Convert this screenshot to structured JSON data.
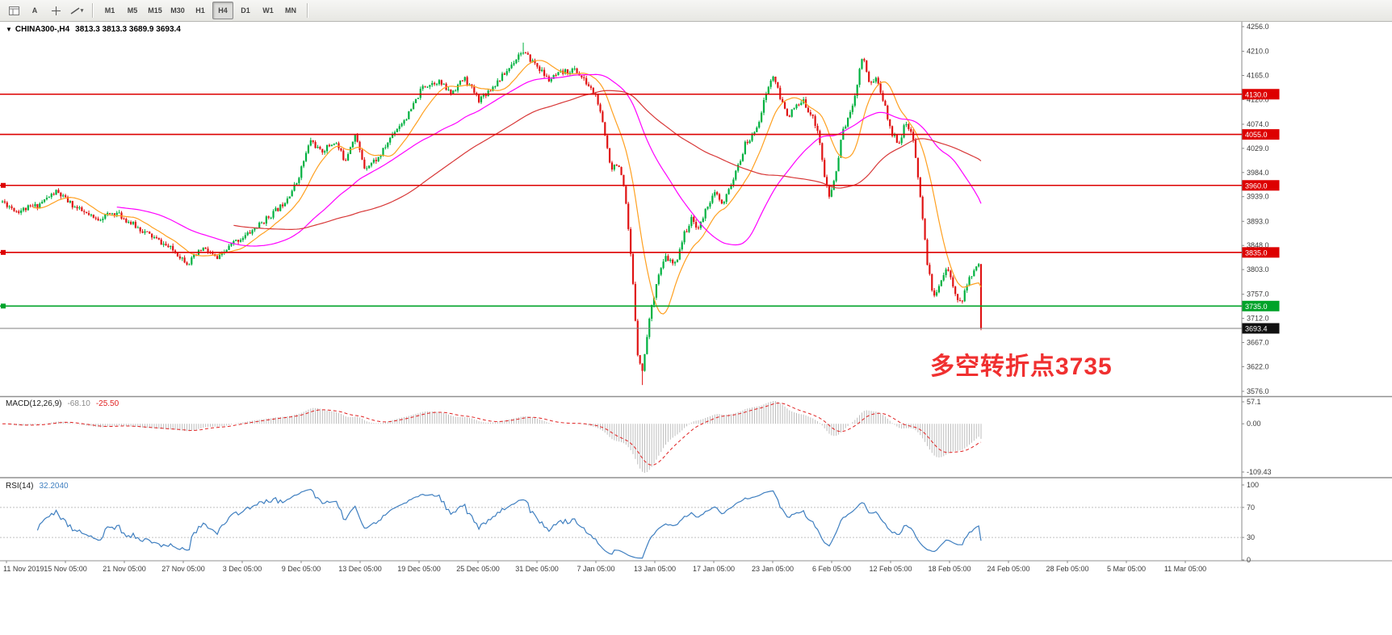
{
  "toolbar": {
    "text_tool_label": "A",
    "timeframes": [
      "M1",
      "M5",
      "M15",
      "M30",
      "H1",
      "H4",
      "D1",
      "W1",
      "MN"
    ],
    "active_timeframe": "H4"
  },
  "chart": {
    "symbol_label": "CHINA300-,H4",
    "ohlc_label": "3813.3 3813.3 3689.9 3693.4",
    "annotation": {
      "text": "多空转折点3735",
      "color": "#f03030"
    },
    "colors": {
      "up": "#00b140",
      "down": "#e01414",
      "current": "#808080",
      "macd_hist": "#bdbdbd",
      "macd_signal": "#e02020",
      "rsi": "#3f7fc0",
      "axis_text": "#3a3a3a"
    },
    "price_axis": {
      "labels": [
        "4256.0",
        "4210.0",
        "4165.0",
        "4120.0",
        "4074.0",
        "4029.0",
        "3984.0",
        "3939.0",
        "3893.0",
        "3848.0",
        "3803.0",
        "3757.0",
        "3712.0",
        "3667.0",
        "3622.0",
        "3576.0"
      ]
    },
    "hlines": [
      {
        "value": 4130.0,
        "badge": "4130.0",
        "color": "#dd0000",
        "anchor": false
      },
      {
        "value": 4055.0,
        "badge": "4055.0",
        "color": "#dd0000",
        "anchor": false
      },
      {
        "value": 3960.0,
        "badge": "3960.0",
        "color": "#dd0000",
        "anchor": true
      },
      {
        "value": 3835.0,
        "badge": "3835.0",
        "color": "#dd0000",
        "anchor": true
      },
      {
        "value": 3735.0,
        "badge": "3735.0",
        "color": "#00a32a",
        "anchor": true
      }
    ],
    "current_price": {
      "value": 3693.4,
      "badge": "3693.4"
    },
    "time_axis": [
      "11 Nov 2019",
      "15 Nov 05:00",
      "21 Nov 05:00",
      "27 Nov 05:00",
      "3 Dec 05:00",
      "9 Dec 05:00",
      "13 Dec 05:00",
      "19 Dec 05:00",
      "25 Dec 05:00",
      "31 Dec 05:00",
      "7 Jan 05:00",
      "13 Jan 05:00",
      "17 Jan 05:00",
      "23 Jan 05:00",
      "6 Feb 05:00",
      "12 Feb 05:00",
      "18 Feb 05:00",
      "24 Feb 05:00",
      "28 Feb 05:00",
      "5 Mar 05:00",
      "11 Mar 05:00"
    ]
  },
  "macd": {
    "label": "MACD(12,26,9)",
    "value_main": "-68.10",
    "value_signal": "-25.50",
    "axis": [
      "57.1",
      "0.00",
      "-109.43"
    ]
  },
  "rsi": {
    "label": "RSI(14)",
    "value": "32.2040",
    "axis": [
      "100",
      "70",
      "30",
      "0"
    ],
    "levels": [
      70,
      30
    ]
  },
  "chart_data": {
    "type": "candlestick",
    "title": "CHINA300-,H4",
    "timeframe": "H4",
    "ylim": [
      3576.0,
      4256.0
    ],
    "x_range": [
      "11 Nov 2019",
      "12 Mar 2020"
    ],
    "last_ohlc": {
      "open": 3813.3,
      "high": 3813.3,
      "low": 3689.9,
      "close": 3693.4
    },
    "horizontal_levels": [
      4130.0,
      4055.0,
      3960.0,
      3835.0,
      3735.0
    ],
    "moving_averages": [
      {
        "period": 14,
        "color": "#ffa020"
      },
      {
        "period": 50,
        "color": "#ff00ff"
      },
      {
        "period": 100,
        "color": "#d83838"
      }
    ],
    "price_waypoints": [
      [
        0.0,
        3930
      ],
      [
        0.015,
        3912
      ],
      [
        0.035,
        3922
      ],
      [
        0.055,
        3948
      ],
      [
        0.075,
        3918
      ],
      [
        0.095,
        3896
      ],
      [
        0.115,
        3910
      ],
      [
        0.135,
        3885
      ],
      [
        0.155,
        3862
      ],
      [
        0.175,
        3838
      ],
      [
        0.19,
        3815
      ],
      [
        0.205,
        3843
      ],
      [
        0.22,
        3822
      ],
      [
        0.235,
        3852
      ],
      [
        0.25,
        3868
      ],
      [
        0.265,
        3890
      ],
      [
        0.285,
        3922
      ],
      [
        0.3,
        3962
      ],
      [
        0.315,
        4045
      ],
      [
        0.325,
        4022
      ],
      [
        0.34,
        4042
      ],
      [
        0.35,
        4006
      ],
      [
        0.36,
        4056
      ],
      [
        0.37,
        3994
      ],
      [
        0.385,
        4012
      ],
      [
        0.4,
        4060
      ],
      [
        0.415,
        4092
      ],
      [
        0.43,
        4145
      ],
      [
        0.445,
        4155
      ],
      [
        0.458,
        4132
      ],
      [
        0.472,
        4160
      ],
      [
        0.487,
        4120
      ],
      [
        0.5,
        4142
      ],
      [
        0.515,
        4172
      ],
      [
        0.53,
        4210
      ],
      [
        0.545,
        4186
      ],
      [
        0.558,
        4156
      ],
      [
        0.572,
        4170
      ],
      [
        0.585,
        4176
      ],
      [
        0.597,
        4150
      ],
      [
        0.607,
        4126
      ],
      [
        0.615,
        4060
      ],
      [
        0.622,
        3992
      ],
      [
        0.629,
        4004
      ],
      [
        0.636,
        3944
      ],
      [
        0.643,
        3810
      ],
      [
        0.649,
        3650
      ],
      [
        0.654,
        3612
      ],
      [
        0.66,
        3700
      ],
      [
        0.669,
        3786
      ],
      [
        0.678,
        3826
      ],
      [
        0.687,
        3810
      ],
      [
        0.696,
        3866
      ],
      [
        0.704,
        3896
      ],
      [
        0.712,
        3880
      ],
      [
        0.721,
        3926
      ],
      [
        0.729,
        3946
      ],
      [
        0.736,
        3920
      ],
      [
        0.743,
        3956
      ],
      [
        0.751,
        3990
      ],
      [
        0.759,
        4036
      ],
      [
        0.766,
        4050
      ],
      [
        0.774,
        4086
      ],
      [
        0.781,
        4136
      ],
      [
        0.788,
        4166
      ],
      [
        0.795,
        4120
      ],
      [
        0.803,
        4090
      ],
      [
        0.811,
        4106
      ],
      [
        0.819,
        4116
      ],
      [
        0.827,
        4090
      ],
      [
        0.834,
        4060
      ],
      [
        0.839,
        3986
      ],
      [
        0.845,
        3936
      ],
      [
        0.852,
        3986
      ],
      [
        0.859,
        4066
      ],
      [
        0.866,
        4090
      ],
      [
        0.873,
        4146
      ],
      [
        0.879,
        4206
      ],
      [
        0.886,
        4150
      ],
      [
        0.893,
        4160
      ],
      [
        0.9,
        4120
      ],
      [
        0.908,
        4060
      ],
      [
        0.916,
        4040
      ],
      [
        0.923,
        4076
      ],
      [
        0.93,
        4050
      ],
      [
        0.937,
        3960
      ],
      [
        0.944,
        3830
      ],
      [
        0.951,
        3750
      ],
      [
        0.958,
        3780
      ],
      [
        0.965,
        3806
      ],
      [
        0.972,
        3770
      ],
      [
        0.979,
        3738
      ],
      [
        0.99,
        3795
      ],
      [
        1.0,
        3813
      ]
    ],
    "indicators": [
      {
        "name": "MACD",
        "params": [
          12,
          26,
          9
        ],
        "current": [
          -68.1,
          -25.5
        ],
        "range": [
          57.1,
          -109.43
        ]
      },
      {
        "name": "RSI",
        "params": [
          14
        ],
        "current": 32.204,
        "levels": [
          70,
          30
        ],
        "range": [
          0,
          100
        ]
      }
    ]
  }
}
